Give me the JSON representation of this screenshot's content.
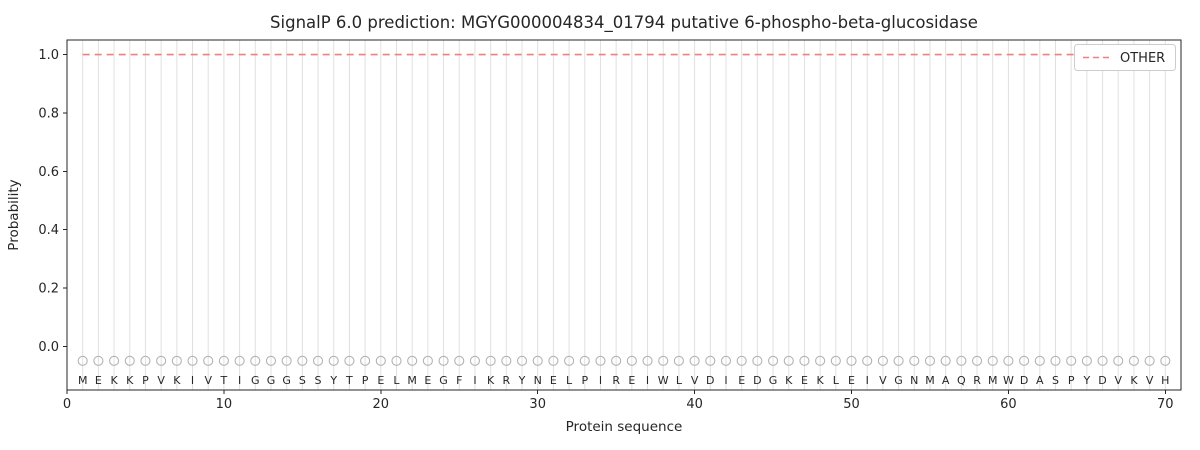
{
  "chart_data": {
    "type": "line",
    "title": "SignalP 6.0 prediction: MGYG000004834_01794 putative 6-phospho-beta-glucosidase",
    "xlabel": "Protein sequence",
    "ylabel": "Probability",
    "xlim": [
      0,
      71
    ],
    "ylim": [
      -0.15,
      1.05
    ],
    "xticks": [
      0,
      10,
      20,
      30,
      40,
      50,
      60,
      70
    ],
    "yticks": [
      0.0,
      0.2,
      0.4,
      0.6,
      0.8,
      1.0
    ],
    "grid": "vertical-gridline-per-residue",
    "legend_position": "upper right",
    "legend": [
      {
        "label": "OTHER",
        "style": "dashed",
        "color": "#f08080"
      }
    ],
    "sequence": "MEKKPVKIVTIGGGSSYTPELMEGFIKRYNELPIREIWLVDIEDGKEKLEIVGNMAQRMWDASPYDVKVH",
    "marker_y": -0.05,
    "letter_y": -0.115,
    "series": [
      {
        "name": "OTHER",
        "color": "#f08080",
        "style": "dashed",
        "x_start": 1,
        "x_end": 70,
        "values": [
          1,
          1,
          1,
          1,
          1,
          1,
          1,
          1,
          1,
          1,
          1,
          1,
          1,
          1,
          1,
          1,
          1,
          1,
          1,
          1,
          1,
          1,
          1,
          1,
          1,
          1,
          1,
          1,
          1,
          1,
          1,
          1,
          1,
          1,
          1,
          1,
          1,
          1,
          1,
          1,
          1,
          1,
          1,
          1,
          1,
          1,
          1,
          1,
          1,
          1,
          1,
          1,
          1,
          1,
          1,
          1,
          1,
          1,
          1,
          1,
          1,
          1,
          1,
          1,
          1,
          1,
          1,
          1,
          1,
          1
        ]
      }
    ],
    "colors": {
      "gridline": "#e0e0e0",
      "marker_stroke": "#b3b3b3",
      "letter": "#333333",
      "spine": "#262626",
      "tick": "#262626",
      "legend_border": "#cccccc",
      "background": "#ffffff"
    }
  }
}
